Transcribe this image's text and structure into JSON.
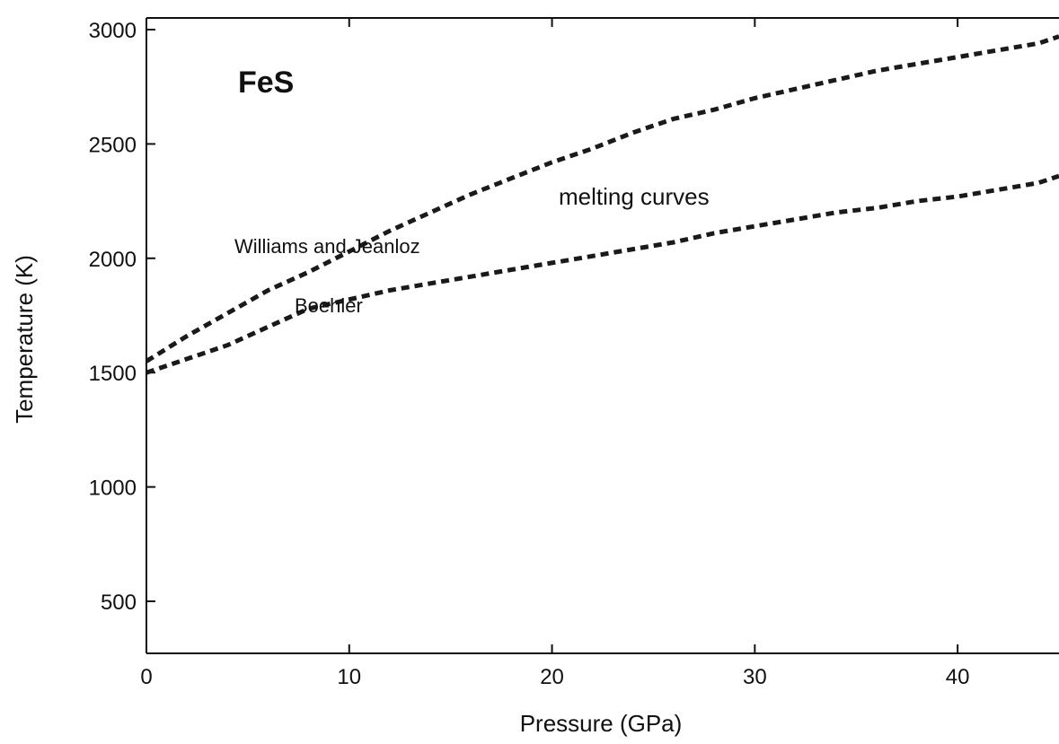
{
  "chart_data": {
    "type": "line",
    "title": "FeS",
    "xlabel": "Pressure (GPa)",
    "ylabel": "Temperature (K)",
    "xlim": [
      0,
      45
    ],
    "ylim": [
      250,
      3050
    ],
    "xticks": [
      0,
      10,
      20,
      30,
      40
    ],
    "yticks": [
      500,
      1000,
      1500,
      2000,
      2500,
      3000
    ],
    "grid": false,
    "legend": "none",
    "line_style": "dashed",
    "line_color": "#1a1a1a",
    "annotations": {
      "group_label": "melting curves",
      "williams": "Williams and Jeanloz",
      "boehler": "Boehler"
    },
    "series": [
      {
        "name": "Williams and Jeanloz",
        "x": [
          0,
          2,
          4,
          6,
          8,
          10,
          12,
          14,
          16,
          18,
          20,
          22,
          24,
          26,
          28,
          30,
          32,
          34,
          36,
          38,
          40,
          42,
          44,
          45
        ],
        "y": [
          1550,
          1660,
          1760,
          1860,
          1940,
          2030,
          2120,
          2200,
          2280,
          2350,
          2420,
          2480,
          2550,
          2610,
          2650,
          2700,
          2740,
          2780,
          2820,
          2850,
          2880,
          2910,
          2940,
          2970
        ]
      },
      {
        "name": "Boehler",
        "x": [
          0,
          2,
          4,
          6,
          8,
          10,
          12,
          14,
          16,
          18,
          20,
          22,
          24,
          26,
          28,
          30,
          32,
          34,
          36,
          38,
          40,
          42,
          44,
          45
        ],
        "y": [
          1500,
          1560,
          1620,
          1700,
          1780,
          1820,
          1860,
          1890,
          1920,
          1950,
          1980,
          2010,
          2040,
          2070,
          2110,
          2140,
          2170,
          2200,
          2220,
          2250,
          2270,
          2300,
          2330,
          2360
        ]
      }
    ]
  }
}
